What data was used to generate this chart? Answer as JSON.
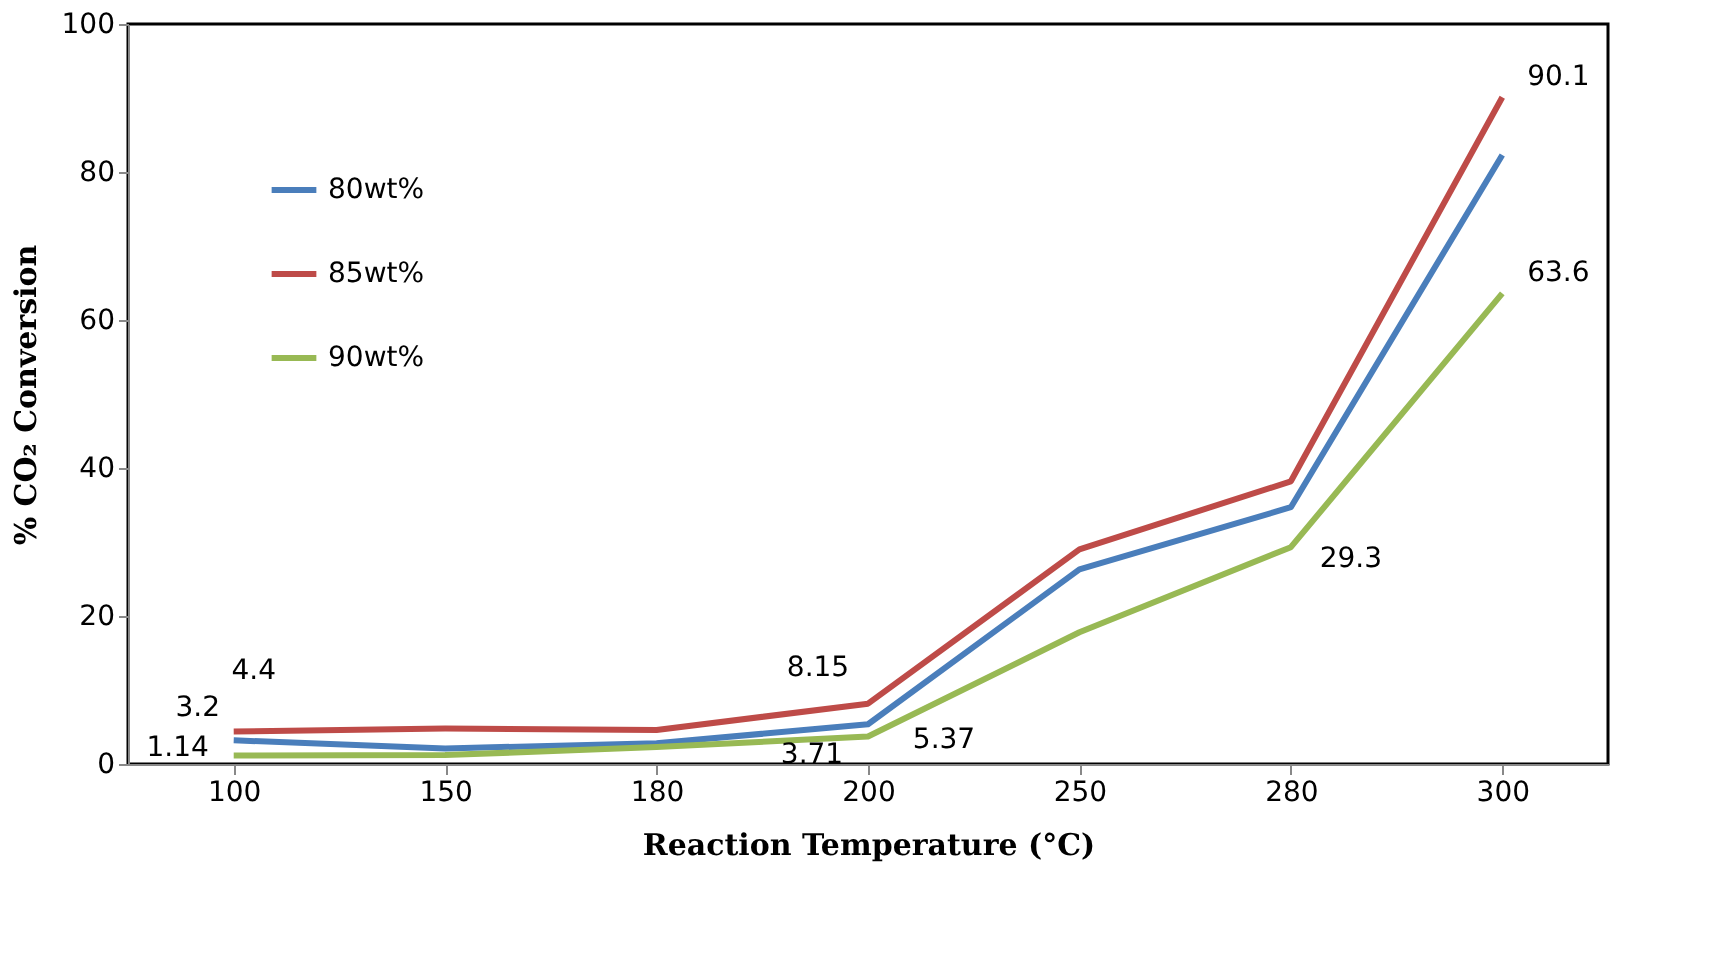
{
  "chart_data": {
    "type": "line",
    "xlabel": "Reaction Temperature (°C)",
    "ylabel": "% CO₂ Conversion",
    "categories": [
      "100",
      "150",
      "180",
      "200",
      "250",
      "280",
      "300"
    ],
    "ylim": [
      0,
      100
    ],
    "yticks": [
      0,
      20,
      40,
      60,
      80,
      100
    ],
    "grid": false,
    "legend": "top left",
    "marker": "none",
    "line_style": "solid",
    "series": [
      {
        "name": "80wt%",
        "color": "#4a7ebb",
        "values": [
          3.2,
          2.1,
          2.8,
          5.37,
          26.3,
          34.7,
          82.3
        ],
        "value_labels": [
          "3.2",
          null,
          null,
          "5.37",
          null,
          null,
          null
        ]
      },
      {
        "name": "85wt%",
        "color": "#be4b48",
        "values": [
          4.4,
          4.8,
          4.6,
          8.15,
          29.0,
          38.2,
          90.1
        ],
        "value_labels": [
          "4.4",
          null,
          null,
          "8.15",
          null,
          null,
          "90.1"
        ]
      },
      {
        "name": "90wt%",
        "color": "#98b954",
        "values": [
          1.14,
          1.2,
          2.3,
          3.71,
          17.8,
          29.3,
          63.6
        ],
        "value_labels": [
          "1.14",
          null,
          null,
          "3.71",
          null,
          "29.3",
          "63.6"
        ]
      }
    ]
  }
}
